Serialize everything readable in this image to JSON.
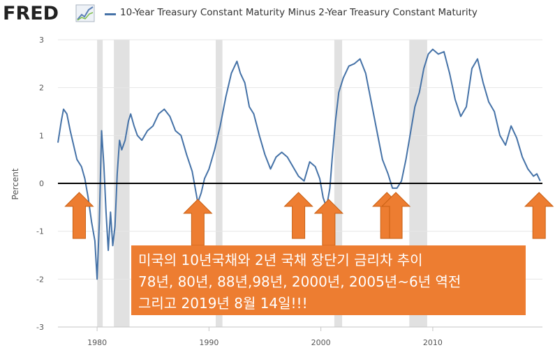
{
  "header": {
    "logo_text": "FRED",
    "series_title": "10-Year Treasury Constant Maturity Minus 2-Year Treasury Constant Maturity",
    "series_color": "#4572a7"
  },
  "annotation": {
    "line1": "미국의 10년국채와 2년 국채 장단기 금리차 추이",
    "line2": "78년, 80년, 88년,98년, 2000년, 2005년~6년 역전",
    "line3": "그리고 2019년 8월 14일!!!",
    "bg_color": "#ed7d31"
  },
  "chart_data": {
    "type": "line",
    "title": "10-Year Treasury Constant Maturity Minus 2-Year Treasury Constant Maturity",
    "ylabel": "Percent",
    "xlabel": "",
    "xlim": [
      1976.5,
      2019.8
    ],
    "ylim": [
      -3,
      3
    ],
    "yticks": [
      "3",
      "2",
      "1",
      "0",
      "-1",
      "-2",
      "-3"
    ],
    "xticks": [
      "1980",
      "1990",
      "2000",
      "2010"
    ],
    "grid": "horizontal",
    "zero_line": true,
    "recessions": [
      [
        1980.0,
        1980.5
      ],
      [
        1981.5,
        1982.9
      ],
      [
        1990.6,
        1991.2
      ],
      [
        2001.2,
        2001.9
      ],
      [
        2007.9,
        2009.5
      ]
    ],
    "series": [
      {
        "color": "#4572a7",
        "x": [
          1976.5,
          1976.8,
          1977.0,
          1977.3,
          1977.6,
          1977.9,
          1978.2,
          1978.6,
          1978.9,
          1979.2,
          1979.5,
          1979.8,
          1980.0,
          1980.2,
          1980.4,
          1980.6,
          1980.8,
          1981.0,
          1981.2,
          1981.4,
          1981.6,
          1981.8,
          1982.0,
          1982.2,
          1982.5,
          1982.8,
          1983.0,
          1983.3,
          1983.6,
          1984.0,
          1984.5,
          1985.0,
          1985.5,
          1986.0,
          1986.5,
          1987.0,
          1987.5,
          1988.0,
          1988.5,
          1989.0,
          1989.3,
          1989.6,
          1990.0,
          1990.5,
          1991.0,
          1991.5,
          1992.0,
          1992.5,
          1992.8,
          1993.2,
          1993.6,
          1994.0,
          1994.5,
          1995.0,
          1995.5,
          1996.0,
          1996.5,
          1997.0,
          1997.5,
          1998.0,
          1998.5,
          1999.0,
          1999.5,
          1999.9,
          2000.2,
          2000.5,
          2000.8,
          2001.0,
          2001.3,
          2001.6,
          2002.0,
          2002.5,
          2003.0,
          2003.5,
          2004.0,
          2004.5,
          2005.0,
          2005.5,
          2006.0,
          2006.4,
          2006.8,
          2007.2,
          2007.6,
          2008.0,
          2008.4,
          2008.8,
          2009.2,
          2009.6,
          2010.0,
          2010.5,
          2011.0,
          2011.5,
          2012.0,
          2012.5,
          2013.0,
          2013.5,
          2014.0,
          2014.5,
          2015.0,
          2015.5,
          2016.0,
          2016.5,
          2017.0,
          2017.5,
          2018.0,
          2018.5,
          2019.0,
          2019.3,
          2019.6
        ],
        "values": [
          0.85,
          1.3,
          1.55,
          1.45,
          1.1,
          0.8,
          0.5,
          0.35,
          0.1,
          -0.3,
          -0.8,
          -1.2,
          -2.0,
          -0.8,
          1.1,
          0.4,
          -0.6,
          -1.4,
          -0.6,
          -1.3,
          -0.9,
          0.2,
          0.9,
          0.7,
          0.9,
          1.3,
          1.45,
          1.2,
          1.0,
          0.9,
          1.1,
          1.2,
          1.45,
          1.55,
          1.4,
          1.1,
          1.0,
          0.6,
          0.25,
          -0.4,
          -0.2,
          0.1,
          0.3,
          0.7,
          1.2,
          1.8,
          2.3,
          2.55,
          2.3,
          2.1,
          1.6,
          1.45,
          1.0,
          0.6,
          0.3,
          0.55,
          0.65,
          0.55,
          0.35,
          0.15,
          0.05,
          0.45,
          0.35,
          0.1,
          -0.3,
          -0.5,
          -0.1,
          0.5,
          1.3,
          1.9,
          2.2,
          2.45,
          2.5,
          2.6,
          2.3,
          1.7,
          1.1,
          0.5,
          0.2,
          -0.1,
          -0.1,
          0.05,
          0.5,
          1.05,
          1.6,
          1.9,
          2.4,
          2.7,
          2.8,
          2.7,
          2.75,
          2.3,
          1.75,
          1.4,
          1.6,
          2.4,
          2.6,
          2.1,
          1.7,
          1.5,
          1.0,
          0.8,
          1.2,
          0.95,
          0.55,
          0.3,
          0.15,
          0.2,
          0.05
        ]
      }
    ]
  }
}
